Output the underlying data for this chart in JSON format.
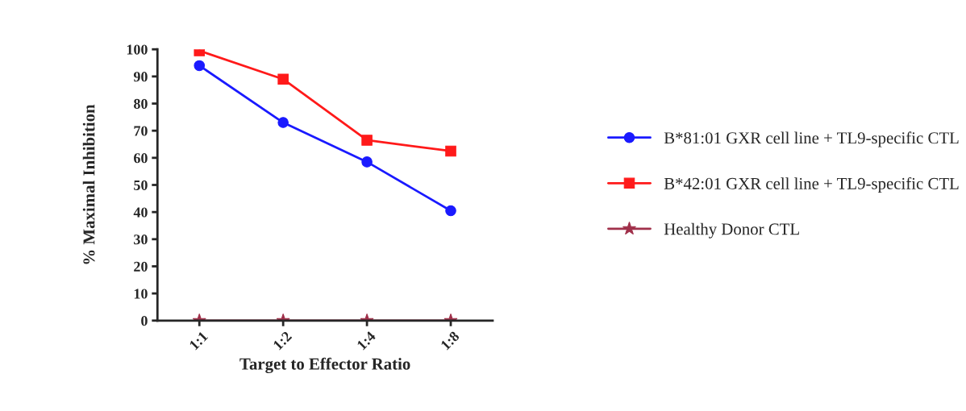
{
  "chart_data": {
    "type": "line",
    "xlabel": "Target to Effector Ratio",
    "ylabel": "% Maximal Inhibition",
    "categories": [
      "1:1",
      "1:2",
      "1:4",
      "1:8"
    ],
    "series": [
      {
        "name": "B*81:01 GXR cell line + TL9-specific CTL",
        "color": "#1a1aff",
        "marker": "circle",
        "values": [
          94,
          73,
          58.5,
          40.5
        ]
      },
      {
        "name": "B*42:01 GXR cell line + TL9-specific CTL",
        "color": "#ff1a1a",
        "marker": "square",
        "values": [
          99.5,
          89,
          66.5,
          62.5
        ]
      },
      {
        "name": "Healthy Donor CTL",
        "color": "#a0304a",
        "marker": "star",
        "values": [
          0,
          0,
          0,
          0
        ]
      }
    ],
    "ylim": [
      0,
      100
    ],
    "yticks": [
      0,
      10,
      20,
      30,
      40,
      50,
      60,
      70,
      80,
      90,
      100
    ],
    "grid": false,
    "legend": "right"
  }
}
